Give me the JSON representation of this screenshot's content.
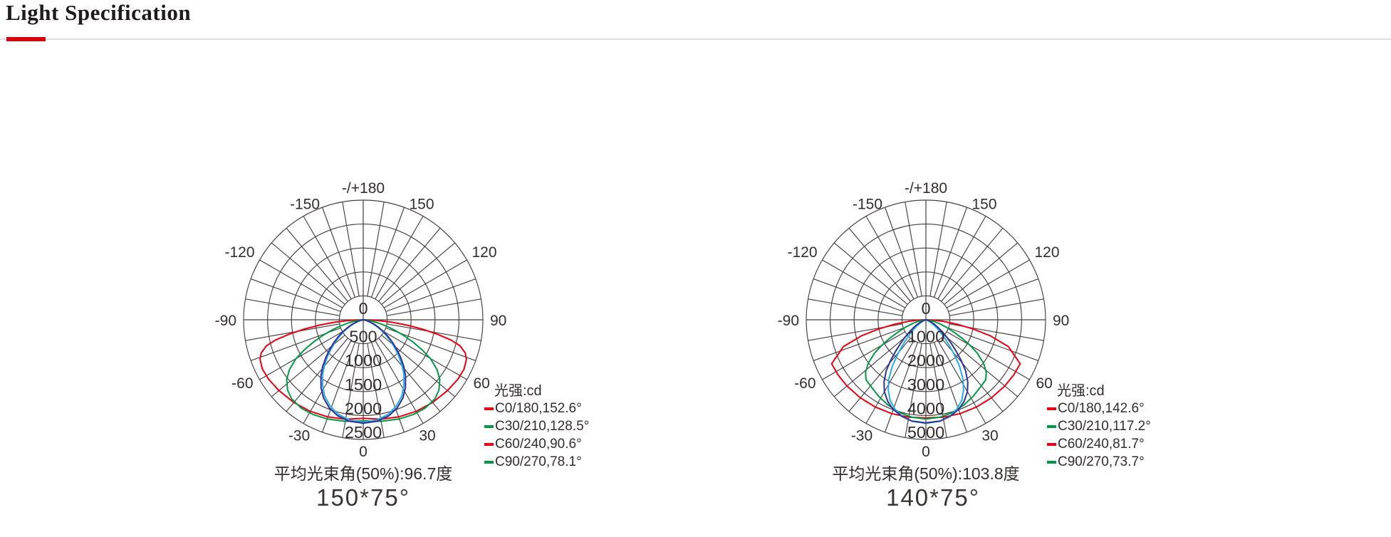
{
  "page": {
    "title": "Light Specification",
    "accent_color": "#d7000f"
  },
  "chart_data": [
    {
      "type": "line",
      "polar": true,
      "title": "150*75°",
      "unit_label": "光强:cd",
      "avg_beam_angle": "平均光束角(50%):96.7度",
      "radial_axis": {
        "max": 2500,
        "step": 500,
        "tick_labels": [
          "0",
          "500",
          "1000",
          "1500",
          "2000",
          "2500"
        ]
      },
      "angle_ticks": [
        {
          "angle": 180,
          "label": "-/+180"
        },
        {
          "angle": -150,
          "label": "-150"
        },
        {
          "angle": 150,
          "label": "150"
        },
        {
          "angle": -120,
          "label": "-120"
        },
        {
          "angle": 120,
          "label": "120"
        },
        {
          "angle": -90,
          "label": "-90"
        },
        {
          "angle": 90,
          "label": "90"
        },
        {
          "angle": -60,
          "label": "-60"
        },
        {
          "angle": 60,
          "label": "60"
        },
        {
          "angle": -30,
          "label": "-30"
        },
        {
          "angle": 30,
          "label": "30"
        },
        {
          "angle": 0,
          "label": "0"
        }
      ],
      "legend": [
        {
          "label": "C0/180,152.6°",
          "swatch_color": "#e60012"
        },
        {
          "label": "C30/210,128.5°",
          "swatch_color": "#009845"
        },
        {
          "label": "C60/240,90.6°",
          "swatch_color": "#e60012"
        },
        {
          "label": "C90/270,78.1°",
          "swatch_color": "#009845"
        }
      ],
      "series": [
        {
          "name": "C0/180",
          "color": "#e60012",
          "beam_angle_deg": 152.6,
          "symmetric": true,
          "points": [
            [
              0,
              2060
            ],
            [
              10,
              2110
            ],
            [
              20,
              2160
            ],
            [
              30,
              2210
            ],
            [
              40,
              2255
            ],
            [
              50,
              2300
            ],
            [
              58,
              2335
            ],
            [
              64,
              2345
            ],
            [
              69,
              2310
            ],
            [
              72,
              2240
            ],
            [
              75,
              2090
            ],
            [
              77,
              1880
            ],
            [
              79,
              1580
            ],
            [
              81,
              1250
            ],
            [
              83,
              920
            ],
            [
              85,
              620
            ],
            [
              87,
              340
            ],
            [
              88,
              180
            ],
            [
              89,
              60
            ],
            [
              90,
              0
            ]
          ]
        },
        {
          "name": "C30/210",
          "color": "#009845",
          "beam_angle_deg": 128.5,
          "symmetric": true,
          "points": [
            [
              0,
              2110
            ],
            [
              10,
              2155
            ],
            [
              20,
              2205
            ],
            [
              28,
              2240
            ],
            [
              35,
              2255
            ],
            [
              42,
              2230
            ],
            [
              47,
              2160
            ],
            [
              52,
              2030
            ],
            [
              56,
              1860
            ],
            [
              60,
              1620
            ],
            [
              63,
              1380
            ],
            [
              66,
              1130
            ],
            [
              69,
              890
            ],
            [
              72,
              670
            ],
            [
              75,
              480
            ],
            [
              78,
              320
            ],
            [
              81,
              190
            ],
            [
              84,
              90
            ],
            [
              86,
              30
            ],
            [
              88,
              0
            ]
          ]
        },
        {
          "name": "C90/270",
          "color": "#29abe2",
          "beam_angle_deg": 78.1,
          "symmetric": true,
          "points": [
            [
              0,
              2140
            ],
            [
              8,
              2115
            ],
            [
              15,
              2040
            ],
            [
              21,
              1930
            ],
            [
              27,
              1780
            ],
            [
              32,
              1605
            ],
            [
              37,
              1405
            ],
            [
              41,
              1220
            ],
            [
              45,
              1035
            ],
            [
              48,
              895
            ],
            [
              52,
              730
            ],
            [
              56,
              575
            ],
            [
              60,
              435
            ],
            [
              64,
              310
            ],
            [
              68,
              205
            ],
            [
              72,
              125
            ],
            [
              76,
              60
            ],
            [
              80,
              15
            ],
            [
              83,
              0
            ]
          ]
        },
        {
          "name": "C60/240",
          "color": "#2e3192",
          "beam_angle_deg": 90.6,
          "symmetric": true,
          "points": [
            [
              0,
              2160
            ],
            [
              8,
              2140
            ],
            [
              15,
              2075
            ],
            [
              21,
              1975
            ],
            [
              27,
              1830
            ],
            [
              32,
              1665
            ],
            [
              37,
              1470
            ],
            [
              41,
              1290
            ],
            [
              45,
              1100
            ],
            [
              48,
              960
            ],
            [
              52,
              790
            ],
            [
              56,
              630
            ],
            [
              60,
              480
            ],
            [
              64,
              350
            ],
            [
              68,
              240
            ],
            [
              72,
              150
            ],
            [
              76,
              80
            ],
            [
              80,
              30
            ],
            [
              84,
              0
            ]
          ]
        }
      ]
    },
    {
      "type": "line",
      "polar": true,
      "title": "140*75°",
      "unit_label": "光强:cd",
      "avg_beam_angle": "平均光束角(50%):103.8度",
      "radial_axis": {
        "max": 5000,
        "step": 1000,
        "tick_labels": [
          "0",
          "1000",
          "2000",
          "3000",
          "4000",
          "5000"
        ]
      },
      "angle_ticks": [
        {
          "angle": 180,
          "label": "-/+180"
        },
        {
          "angle": -150,
          "label": "-150"
        },
        {
          "angle": 150,
          "label": "150"
        },
        {
          "angle": -120,
          "label": "-120"
        },
        {
          "angle": 120,
          "label": "120"
        },
        {
          "angle": -90,
          "label": "-90"
        },
        {
          "angle": 90,
          "label": "90"
        },
        {
          "angle": -60,
          "label": "-60"
        },
        {
          "angle": 60,
          "label": "60"
        },
        {
          "angle": -30,
          "label": "-30"
        },
        {
          "angle": 30,
          "label": "30"
        },
        {
          "angle": 0,
          "label": "0"
        }
      ],
      "legend": [
        {
          "label": "C0/180,142.6°",
          "swatch_color": "#e60012"
        },
        {
          "label": "C30/210,117.2°",
          "swatch_color": "#009845"
        },
        {
          "label": "C60/240,81.7°",
          "swatch_color": "#e60012"
        },
        {
          "label": "C90/270,73.7°",
          "swatch_color": "#009845"
        }
      ],
      "series": [
        {
          "name": "C0/180",
          "color": "#e60012",
          "beam_angle_deg": 142.6,
          "symmetric": true,
          "points": [
            [
              0,
              4100
            ],
            [
              10,
              4135
            ],
            [
              20,
              4175
            ],
            [
              30,
              4215
            ],
            [
              40,
              4260
            ],
            [
              50,
              4305
            ],
            [
              58,
              4335
            ],
            [
              65,
              4345
            ],
            [
              72,
              3620
            ],
            [
              76,
              2780
            ],
            [
              79,
              2000
            ],
            [
              82,
              1300
            ],
            [
              85,
              700
            ],
            [
              88,
              250
            ],
            [
              90,
              0
            ]
          ]
        },
        {
          "name": "C30/210",
          "color": "#009845",
          "beam_angle_deg": 117.2,
          "symmetric": true,
          "points": [
            [
              0,
              4150
            ],
            [
              8,
              4115
            ],
            [
              16,
              4030
            ],
            [
              24,
              3900
            ],
            [
              32,
              3750
            ],
            [
              39,
              3620
            ],
            [
              45,
              3540
            ],
            [
              49,
              3340
            ],
            [
              53,
              3020
            ],
            [
              57,
              2560
            ],
            [
              60,
              2120
            ],
            [
              63,
              1690
            ],
            [
              66,
              1300
            ],
            [
              70,
              900
            ],
            [
              74,
              590
            ],
            [
              78,
              360
            ],
            [
              82,
              190
            ],
            [
              86,
              70
            ],
            [
              89,
              0
            ]
          ]
        },
        {
          "name": "C90/270",
          "color": "#29abe2",
          "beam_angle_deg": 73.7,
          "symmetric": true,
          "points": [
            [
              0,
              4330
            ],
            [
              8,
              4280
            ],
            [
              14,
              4150
            ],
            [
              19,
              3960
            ],
            [
              24,
              3680
            ],
            [
              28,
              3350
            ],
            [
              32,
              2930
            ],
            [
              36,
              2380
            ],
            [
              39,
              1900
            ],
            [
              42,
              1500
            ],
            [
              45,
              1170
            ],
            [
              48,
              900
            ],
            [
              52,
              630
            ],
            [
              56,
              430
            ],
            [
              60,
              280
            ],
            [
              64,
              170
            ],
            [
              68,
              90
            ],
            [
              73,
              30
            ],
            [
              77,
              0
            ]
          ]
        },
        {
          "name": "C60/240",
          "color": "#2e3192",
          "beam_angle_deg": 81.7,
          "symmetric": true,
          "points": [
            [
              0,
              4310
            ],
            [
              8,
              4270
            ],
            [
              14,
              4160
            ],
            [
              20,
              3990
            ],
            [
              25,
              3770
            ],
            [
              30,
              3470
            ],
            [
              34,
              3130
            ],
            [
              38,
              2690
            ],
            [
              41,
              2230
            ],
            [
              44,
              1810
            ],
            [
              47,
              1450
            ],
            [
              50,
              1150
            ],
            [
              54,
              830
            ],
            [
              58,
              590
            ],
            [
              62,
              400
            ],
            [
              66,
              260
            ],
            [
              70,
              150
            ],
            [
              75,
              70
            ],
            [
              80,
              0
            ]
          ]
        }
      ]
    }
  ]
}
